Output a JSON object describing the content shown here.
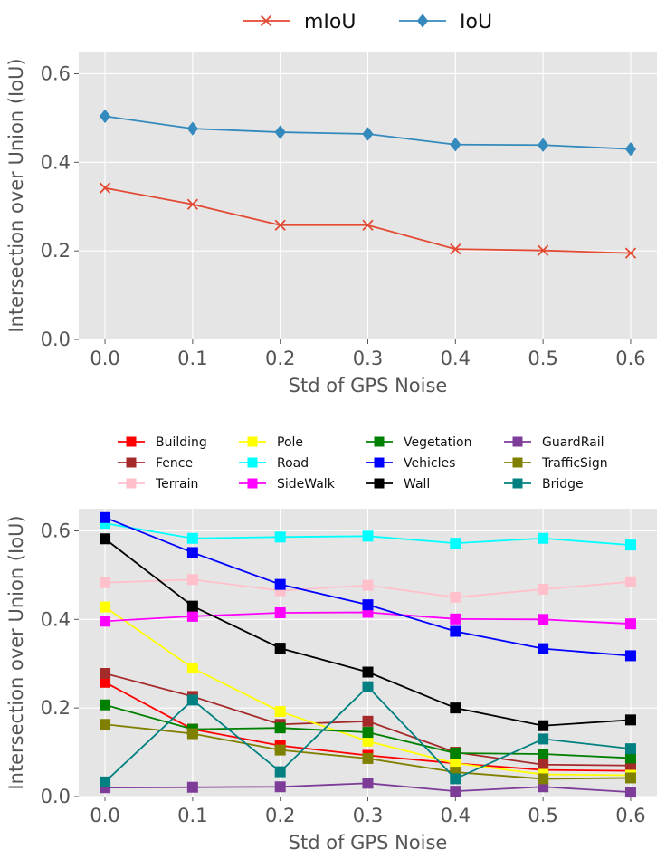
{
  "chart_data": [
    {
      "type": "line",
      "xlabel": "Std of GPS Noise",
      "ylabel": "Intersection over Union (IoU)",
      "x": [
        0.0,
        0.1,
        0.2,
        0.3,
        0.4,
        0.5,
        0.6
      ],
      "xticks": [
        "0.0",
        "0.1",
        "0.2",
        "0.3",
        "0.4",
        "0.5",
        "0.6"
      ],
      "yticks": [
        "0.0",
        "0.2",
        "0.4",
        "0.6"
      ],
      "xlim": [
        -0.03,
        0.63
      ],
      "ylim": [
        0.0,
        0.65
      ],
      "grid": true,
      "legend": "top-center",
      "series": [
        {
          "name": "mIoU",
          "color": "#E24A33",
          "marker": "x",
          "values": [
            0.342,
            0.305,
            0.258,
            0.258,
            0.204,
            0.201,
            0.195
          ]
        },
        {
          "name": "IoU",
          "color": "#348ABD",
          "marker": "diamond",
          "values": [
            0.504,
            0.476,
            0.468,
            0.464,
            0.44,
            0.439,
            0.43
          ]
        }
      ]
    },
    {
      "type": "line",
      "xlabel": "Std of GPS Noise",
      "ylabel": "Intersection over Union (IoU)",
      "x": [
        0.0,
        0.1,
        0.2,
        0.3,
        0.4,
        0.5,
        0.6
      ],
      "xticks": [
        "0.0",
        "0.1",
        "0.2",
        "0.3",
        "0.4",
        "0.5",
        "0.6"
      ],
      "yticks": [
        "0.0",
        "0.2",
        "0.4",
        "0.6"
      ],
      "xlim": [
        -0.03,
        0.63
      ],
      "ylim": [
        0.0,
        0.65
      ],
      "grid": true,
      "legend": "top-center",
      "series": [
        {
          "name": "Building",
          "color": "#FF0000",
          "marker": "square",
          "values": [
            0.258,
            0.152,
            0.115,
            0.093,
            0.075,
            0.06,
            0.058
          ]
        },
        {
          "name": "Fence",
          "color": "#A52A2A",
          "marker": "square",
          "values": [
            0.278,
            0.226,
            0.163,
            0.17,
            0.1,
            0.072,
            0.07
          ]
        },
        {
          "name": "Terrain",
          "color": "#FFC0CB",
          "marker": "square",
          "values": [
            0.483,
            0.49,
            0.465,
            0.477,
            0.45,
            0.468,
            0.485
          ]
        },
        {
          "name": "Pole",
          "color": "#FFFF00",
          "marker": "square",
          "values": [
            0.428,
            0.29,
            0.192,
            0.125,
            0.075,
            0.05,
            0.048
          ]
        },
        {
          "name": "Road",
          "color": "#00FFFF",
          "marker": "square",
          "values": [
            0.617,
            0.583,
            0.586,
            0.588,
            0.572,
            0.583,
            0.568
          ]
        },
        {
          "name": "SideWalk",
          "color": "#FF00FF",
          "marker": "square",
          "values": [
            0.396,
            0.407,
            0.415,
            0.416,
            0.401,
            0.4,
            0.39
          ]
        },
        {
          "name": "Vegetation",
          "color": "#008000",
          "marker": "square",
          "values": [
            0.207,
            0.152,
            0.155,
            0.145,
            0.098,
            0.096,
            0.087
          ]
        },
        {
          "name": "Vehicles",
          "color": "#0000FF",
          "marker": "square",
          "values": [
            0.63,
            0.551,
            0.479,
            0.433,
            0.373,
            0.334,
            0.318
          ]
        },
        {
          "name": "Wall",
          "color": "#000000",
          "marker": "square",
          "values": [
            0.582,
            0.43,
            0.335,
            0.281,
            0.2,
            0.16,
            0.173
          ]
        },
        {
          "name": "GuardRail",
          "color": "#7D3C98",
          "marker": "square",
          "values": [
            0.02,
            0.021,
            0.022,
            0.03,
            0.012,
            0.022,
            0.01
          ]
        },
        {
          "name": "TrafficSign",
          "color": "#808000",
          "marker": "square",
          "values": [
            0.163,
            0.142,
            0.105,
            0.086,
            0.055,
            0.04,
            0.042
          ]
        },
        {
          "name": "Bridge",
          "color": "#008080",
          "marker": "square",
          "values": [
            0.033,
            0.218,
            0.056,
            0.248,
            0.04,
            0.13,
            0.108
          ]
        }
      ]
    }
  ]
}
